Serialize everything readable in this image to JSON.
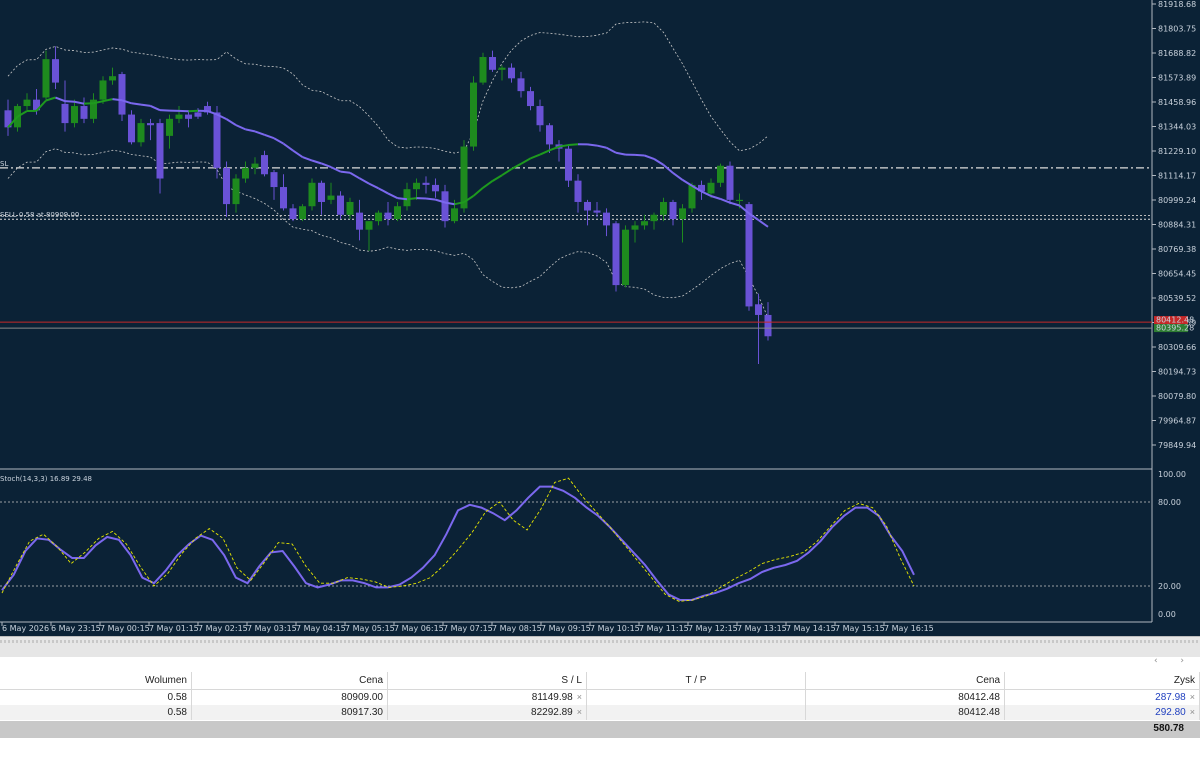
{
  "price_axis": {
    "labels": [
      "81918.68",
      "81803.75",
      "81688.82",
      "81573.89",
      "81458.96",
      "81344.03",
      "81229.10",
      "81114.17",
      "80999.24",
      "80884.31",
      "80769.38",
      "80654.45",
      "80539.52",
      "80424.59",
      "80309.66",
      "80194.73",
      "80079.80",
      "79964.87",
      "79849.94"
    ],
    "current_bid": "80412.48",
    "current_ask": "80395.28",
    "bid_color": "#c62828",
    "ask_color": "#2e7d32"
  },
  "order_lines": {
    "sl_label": "SL",
    "sell_label": "SELL 0.58 at 80909.00",
    "sell2_label": "SELL 0.58 at 80917.30"
  },
  "colors": {
    "background": "#0b2236",
    "bull_candle": "#1e8a1e",
    "bear_candle": "#6a52d6",
    "ma_bear": "#7b68ee",
    "ma_bull": "#1e9a1e",
    "band": "#c8c8c8"
  },
  "stoch": {
    "label": "Stoch(14,3,3) 16.89 29.48",
    "levels": [
      "100.00",
      "80.00",
      "20.00",
      "0.00"
    ]
  },
  "time_axis": {
    "labels": [
      "6 May 2026",
      "6 May 23:15",
      "7 May 00:15",
      "7 May 01:15",
      "7 May 02:15",
      "7 May 03:15",
      "7 May 04:15",
      "7 May 05:15",
      "7 May 06:15",
      "7 May 07:15",
      "7 May 08:15",
      "7 May 09:15",
      "7 May 10:15",
      "7 May 11:15",
      "7 May 12:15",
      "7 May 13:15",
      "7 May 14:15",
      "7 May 15:15",
      "7 May 16:15"
    ]
  },
  "chart_data": {
    "type": "candlestick",
    "timeframe_hint": "M5",
    "candles": [
      [
        81420,
        81470,
        81300,
        81340
      ],
      [
        81340,
        81450,
        81320,
        81440
      ],
      [
        81440,
        81500,
        81420,
        81470
      ],
      [
        81470,
        81520,
        81400,
        81420
      ],
      [
        81480,
        81700,
        81470,
        81660
      ],
      [
        81660,
        81720,
        81520,
        81550
      ],
      [
        81450,
        81560,
        81320,
        81360
      ],
      [
        81360,
        81470,
        81340,
        81440
      ],
      [
        81440,
        81480,
        81360,
        81380
      ],
      [
        81380,
        81500,
        81360,
        81470
      ],
      [
        81470,
        81580,
        81450,
        81560
      ],
      [
        81560,
        81620,
        81540,
        81580
      ],
      [
        81590,
        81600,
        81370,
        81400
      ],
      [
        81400,
        81420,
        81260,
        81270
      ],
      [
        81270,
        81380,
        81250,
        81360
      ],
      [
        81360,
        81380,
        81280,
        81350
      ],
      [
        81360,
        81380,
        81030,
        81100
      ],
      [
        81300,
        81400,
        81240,
        81380
      ],
      [
        81380,
        81440,
        81360,
        81400
      ],
      [
        81400,
        81420,
        81340,
        81380
      ],
      [
        81410,
        81430,
        81380,
        81390
      ],
      [
        81440,
        81460,
        81400,
        81410
      ],
      [
        81410,
        81440,
        81100,
        81150
      ],
      [
        81150,
        81180,
        80920,
        80980
      ],
      [
        80980,
        81120,
        80940,
        81100
      ],
      [
        81100,
        81180,
        81080,
        81150
      ],
      [
        81150,
        81200,
        81120,
        81170
      ],
      [
        81210,
        81230,
        81110,
        81120
      ],
      [
        81130,
        81140,
        81000,
        81060
      ],
      [
        81060,
        81120,
        80950,
        80960
      ],
      [
        80960,
        80980,
        80900,
        80910
      ],
      [
        80910,
        80980,
        80900,
        80970
      ],
      [
        80970,
        81100,
        80950,
        81080
      ],
      [
        81080,
        81090,
        80930,
        80990
      ],
      [
        81000,
        81080,
        80980,
        81020
      ],
      [
        81020,
        81040,
        80910,
        80930
      ],
      [
        80930,
        81010,
        80910,
        80990
      ],
      [
        80940,
        81000,
        80810,
        80860
      ],
      [
        80860,
        80900,
        80760,
        80900
      ],
      [
        80900,
        80950,
        80880,
        80940
      ],
      [
        80940,
        80990,
        80880,
        80910
      ],
      [
        80910,
        80990,
        80900,
        80970
      ],
      [
        80970,
        81080,
        80950,
        81050
      ],
      [
        81050,
        81100,
        81000,
        81080
      ],
      [
        81080,
        81110,
        81030,
        81070
      ],
      [
        81070,
        81100,
        81010,
        81040
      ],
      [
        81040,
        81070,
        80870,
        80900
      ],
      [
        80900,
        81000,
        80890,
        80960
      ],
      [
        80960,
        81280,
        80940,
        81250
      ],
      [
        81250,
        81580,
        81230,
        81550
      ],
      [
        81550,
        81690,
        81540,
        81670
      ],
      [
        81670,
        81700,
        81600,
        81610
      ],
      [
        81610,
        81630,
        81560,
        81620
      ],
      [
        81620,
        81640,
        81550,
        81570
      ],
      [
        81570,
        81600,
        81480,
        81510
      ],
      [
        81510,
        81530,
        81420,
        81440
      ],
      [
        81440,
        81470,
        81320,
        81350
      ],
      [
        81350,
        81360,
        81220,
        81260
      ],
      [
        81260,
        81280,
        81180,
        81240
      ],
      [
        81240,
        81260,
        81060,
        81090
      ],
      [
        81090,
        81120,
        80940,
        80990
      ],
      [
        80990,
        81000,
        80880,
        80950
      ],
      [
        80950,
        80990,
        80920,
        80940
      ],
      [
        80940,
        80960,
        80830,
        80880
      ],
      [
        80890,
        80900,
        80570,
        80600
      ],
      [
        80600,
        80880,
        80590,
        80860
      ],
      [
        80860,
        80900,
        80800,
        80880
      ],
      [
        80880,
        80930,
        80860,
        80900
      ],
      [
        80900,
        80940,
        80860,
        80930
      ],
      [
        80930,
        81010,
        80900,
        80990
      ],
      [
        80990,
        81000,
        80880,
        80910
      ],
      [
        80910,
        80980,
        80800,
        80960
      ],
      [
        80960,
        81080,
        80940,
        81070
      ],
      [
        81070,
        81090,
        81000,
        81040
      ],
      [
        81030,
        81100,
        81010,
        81080
      ],
      [
        81080,
        81170,
        81060,
        81160
      ],
      [
        81160,
        81180,
        80980,
        81000
      ],
      [
        81000,
        81030,
        80960,
        81000
      ],
      [
        80980,
        80990,
        80480,
        80500
      ],
      [
        80510,
        80560,
        80230,
        80460
      ],
      [
        80460,
        80520,
        80340,
        80360
      ]
    ],
    "sl_price": 81149.98,
    "sell_price_1": 80909.0,
    "sell_price_2": 80917.3,
    "bid": 80412.48,
    "stochastic": {
      "main_k": [
        17,
        28,
        45,
        54,
        53,
        46,
        40,
        40,
        49,
        55,
        53,
        42,
        26,
        22,
        31,
        42,
        50,
        56,
        53,
        42,
        26,
        22,
        34,
        44,
        45,
        34,
        22,
        19,
        21,
        24,
        24,
        22,
        19,
        19,
        21,
        26,
        33,
        42,
        57,
        74,
        78,
        76,
        72,
        67,
        74,
        83,
        91,
        91,
        88,
        83,
        76,
        70,
        62,
        53,
        44,
        35,
        24,
        14,
        10,
        10,
        13,
        15,
        18,
        22,
        25,
        30,
        33,
        35,
        38,
        44,
        52,
        62,
        70,
        76,
        76,
        70,
        56,
        45,
        28
      ],
      "signal_d": [
        15,
        34,
        52,
        57,
        48,
        36,
        44,
        54,
        59,
        50,
        34,
        20,
        29,
        43,
        54,
        61,
        54,
        33,
        24,
        37,
        51,
        50,
        34,
        22,
        22,
        26,
        25,
        23,
        19,
        20,
        22,
        26,
        35,
        46,
        58,
        73,
        80,
        67,
        60,
        75,
        94,
        97,
        84,
        73,
        62,
        50,
        38,
        26,
        14,
        9,
        10,
        13,
        19,
        25,
        30,
        36,
        39,
        41,
        44,
        52,
        63,
        74,
        79,
        76,
        63,
        40,
        20
      ],
      "level_upper": 80,
      "level_lower": 20
    }
  },
  "table": {
    "headers": {
      "volume": "Wolumen",
      "price": "Cena",
      "sl": "S / L",
      "tp": "T / P",
      "current_price": "Cena",
      "profit": "Zysk"
    },
    "rows": [
      {
        "volume": "0.58",
        "price": "80909.00",
        "sl": "81149.98",
        "tp": "",
        "current_price": "80412.48",
        "profit": "287.98"
      },
      {
        "volume": "0.58",
        "price": "80917.30",
        "sl": "82292.89",
        "tp": "",
        "current_price": "80412.48",
        "profit": "292.80"
      }
    ],
    "total_profit": "580.78",
    "close_glyph": "×",
    "scroll_glyphs": "‹ ›"
  }
}
